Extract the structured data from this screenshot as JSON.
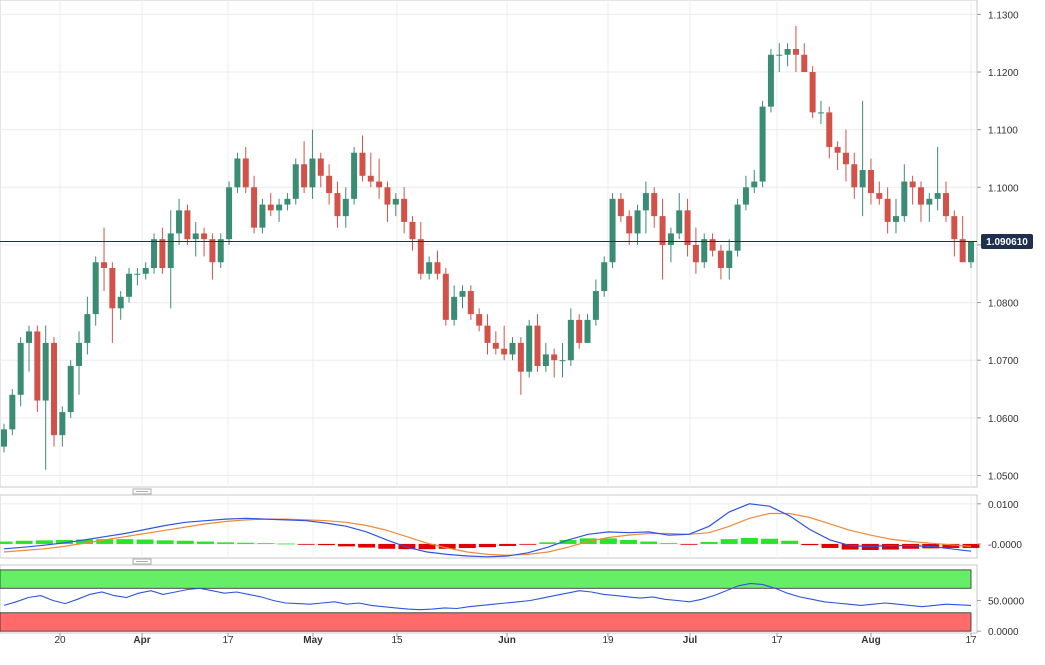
{
  "chart_data": [
    {
      "panel": "price",
      "type": "candlestick",
      "ylim": [
        1.048,
        1.1325
      ],
      "yticks": [
        "1.0500",
        "1.0600",
        "1.0700",
        "1.0800",
        "1.0900",
        "1.1000",
        "1.1100",
        "1.1200",
        "1.1300"
      ],
      "last_price_label": "1.090610",
      "last_price": 1.0906,
      "colors": {
        "up": "#3a8c74",
        "down": "#d2524a",
        "price_line": "#1e2f4f",
        "label_bg": "#1e2f4f"
      },
      "candles": [
        [
          1.055,
          1.059,
          1.054,
          1.058
        ],
        [
          1.058,
          1.065,
          1.057,
          1.064
        ],
        [
          1.064,
          1.074,
          1.062,
          1.073
        ],
        [
          1.073,
          1.076,
          1.068,
          1.075
        ],
        [
          1.075,
          1.076,
          1.061,
          1.063
        ],
        [
          1.063,
          1.076,
          1.051,
          1.073
        ],
        [
          1.073,
          1.074,
          1.055,
          1.057
        ],
        [
          1.057,
          1.062,
          1.055,
          1.061
        ],
        [
          1.061,
          1.07,
          1.06,
          1.069
        ],
        [
          1.069,
          1.075,
          1.064,
          1.073
        ],
        [
          1.073,
          1.081,
          1.071,
          1.078
        ],
        [
          1.078,
          1.088,
          1.076,
          1.087
        ],
        [
          1.087,
          1.093,
          1.082,
          1.086
        ],
        [
          1.086,
          1.087,
          1.073,
          1.079
        ],
        [
          1.079,
          1.082,
          1.077,
          1.081
        ],
        [
          1.081,
          1.086,
          1.08,
          1.085
        ],
        [
          1.085,
          1.086,
          1.083,
          1.085
        ],
        [
          1.085,
          1.087,
          1.084,
          1.086
        ],
        [
          1.086,
          1.092,
          1.085,
          1.091
        ],
        [
          1.091,
          1.093,
          1.085,
          1.086
        ],
        [
          1.086,
          1.096,
          1.079,
          1.092
        ],
        [
          1.092,
          1.098,
          1.09,
          1.096
        ],
        [
          1.096,
          1.097,
          1.09,
          1.091
        ],
        [
          1.091,
          1.094,
          1.088,
          1.092
        ],
        [
          1.092,
          1.093,
          1.088,
          1.091
        ],
        [
          1.091,
          1.092,
          1.084,
          1.087
        ],
        [
          1.087,
          1.092,
          1.086,
          1.091
        ],
        [
          1.091,
          1.101,
          1.09,
          1.1
        ],
        [
          1.1,
          1.106,
          1.099,
          1.105
        ],
        [
          1.105,
          1.107,
          1.099,
          1.1
        ],
        [
          1.1,
          1.102,
          1.092,
          1.093
        ],
        [
          1.093,
          1.098,
          1.092,
          1.097
        ],
        [
          1.097,
          1.099,
          1.095,
          1.096
        ],
        [
          1.096,
          1.098,
          1.094,
          1.097
        ],
        [
          1.097,
          1.099,
          1.096,
          1.098
        ],
        [
          1.098,
          1.105,
          1.097,
          1.104
        ],
        [
          1.104,
          1.108,
          1.099,
          1.1
        ],
        [
          1.1,
          1.11,
          1.098,
          1.105
        ],
        [
          1.105,
          1.106,
          1.1,
          1.102
        ],
        [
          1.102,
          1.104,
          1.097,
          1.099
        ],
        [
          1.099,
          1.101,
          1.093,
          1.095
        ],
        [
          1.095,
          1.1,
          1.093,
          1.098
        ],
        [
          1.098,
          1.107,
          1.097,
          1.106
        ],
        [
          1.106,
          1.109,
          1.101,
          1.102
        ],
        [
          1.102,
          1.106,
          1.1,
          1.101
        ],
        [
          1.101,
          1.105,
          1.098,
          1.1
        ],
        [
          1.1,
          1.101,
          1.094,
          1.097
        ],
        [
          1.097,
          1.099,
          1.095,
          1.098
        ],
        [
          1.098,
          1.1,
          1.092,
          1.094
        ],
        [
          1.094,
          1.095,
          1.089,
          1.091
        ],
        [
          1.091,
          1.094,
          1.084,
          1.085
        ],
        [
          1.085,
          1.088,
          1.084,
          1.087
        ],
        [
          1.087,
          1.089,
          1.084,
          1.085
        ],
        [
          1.085,
          1.086,
          1.076,
          1.077
        ],
        [
          1.077,
          1.083,
          1.076,
          1.081
        ],
        [
          1.081,
          1.083,
          1.079,
          1.082
        ],
        [
          1.082,
          1.083,
          1.077,
          1.078
        ],
        [
          1.078,
          1.079,
          1.075,
          1.076
        ],
        [
          1.076,
          1.078,
          1.071,
          1.073
        ],
        [
          1.073,
          1.075,
          1.071,
          1.072
        ],
        [
          1.072,
          1.076,
          1.07,
          1.071
        ],
        [
          1.071,
          1.074,
          1.07,
          1.073
        ],
        [
          1.073,
          1.074,
          1.064,
          1.068
        ],
        [
          1.068,
          1.077,
          1.067,
          1.076
        ],
        [
          1.076,
          1.078,
          1.068,
          1.069
        ],
        [
          1.069,
          1.073,
          1.068,
          1.071
        ],
        [
          1.071,
          1.072,
          1.067,
          1.07
        ],
        [
          1.07,
          1.073,
          1.067,
          1.07
        ],
        [
          1.07,
          1.079,
          1.069,
          1.077
        ],
        [
          1.077,
          1.078,
          1.072,
          1.073
        ],
        [
          1.073,
          1.078,
          1.073,
          1.077
        ],
        [
          1.077,
          1.084,
          1.076,
          1.082
        ],
        [
          1.082,
          1.088,
          1.081,
          1.087
        ],
        [
          1.087,
          1.099,
          1.086,
          1.098
        ],
        [
          1.098,
          1.099,
          1.094,
          1.095
        ],
        [
          1.095,
          1.096,
          1.09,
          1.092
        ],
        [
          1.092,
          1.097,
          1.09,
          1.096
        ],
        [
          1.096,
          1.101,
          1.092,
          1.099
        ],
        [
          1.099,
          1.1,
          1.093,
          1.095
        ],
        [
          1.095,
          1.098,
          1.084,
          1.09
        ],
        [
          1.09,
          1.093,
          1.087,
          1.092
        ],
        [
          1.092,
          1.099,
          1.091,
          1.096
        ],
        [
          1.096,
          1.098,
          1.088,
          1.09
        ],
        [
          1.09,
          1.093,
          1.085,
          1.087
        ],
        [
          1.087,
          1.092,
          1.086,
          1.091
        ],
        [
          1.091,
          1.092,
          1.088,
          1.089
        ],
        [
          1.089,
          1.09,
          1.084,
          1.086
        ],
        [
          1.086,
          1.091,
          1.084,
          1.089
        ],
        [
          1.089,
          1.098,
          1.088,
          1.097
        ],
        [
          1.097,
          1.102,
          1.096,
          1.1
        ],
        [
          1.1,
          1.103,
          1.099,
          1.101
        ],
        [
          1.101,
          1.115,
          1.1,
          1.114
        ],
        [
          1.114,
          1.124,
          1.113,
          1.123
        ],
        [
          1.123,
          1.125,
          1.12,
          1.123
        ],
        [
          1.123,
          1.125,
          1.121,
          1.124
        ],
        [
          1.124,
          1.128,
          1.12,
          1.123
        ],
        [
          1.123,
          1.125,
          1.12,
          1.12
        ],
        [
          1.12,
          1.121,
          1.112,
          1.113
        ],
        [
          1.113,
          1.115,
          1.111,
          1.113
        ],
        [
          1.113,
          1.114,
          1.105,
          1.107
        ],
        [
          1.107,
          1.108,
          1.103,
          1.106
        ],
        [
          1.106,
          1.11,
          1.101,
          1.104
        ],
        [
          1.104,
          1.106,
          1.098,
          1.1
        ],
        [
          1.1,
          1.115,
          1.095,
          1.103
        ],
        [
          1.103,
          1.105,
          1.097,
          1.099
        ],
        [
          1.099,
          1.101,
          1.097,
          1.098
        ],
        [
          1.098,
          1.1,
          1.092,
          1.094
        ],
        [
          1.094,
          1.098,
          1.092,
          1.095
        ],
        [
          1.095,
          1.104,
          1.094,
          1.101
        ],
        [
          1.101,
          1.102,
          1.097,
          1.1
        ],
        [
          1.1,
          1.101,
          1.094,
          1.097
        ],
        [
          1.097,
          1.099,
          1.094,
          1.098
        ],
        [
          1.098,
          1.107,
          1.096,
          1.099
        ],
        [
          1.099,
          1.101,
          1.094,
          1.095
        ],
        [
          1.095,
          1.096,
          1.088,
          1.091
        ],
        [
          1.091,
          1.095,
          1.087,
          1.087
        ],
        [
          1.087,
          1.09,
          1.086,
          1.0906
        ]
      ]
    },
    {
      "panel": "macd",
      "type": "macd",
      "ylim": [
        -0.0035,
        0.0122
      ],
      "yticks": [
        "0.0100",
        "-0.0000"
      ],
      "colors": {
        "macd": "#2f55e0",
        "signal": "#ef8a3a",
        "hist_up": "#27e627",
        "hist_down": "#e00000"
      },
      "macd": [
        -0.0012,
        -0.0008,
        -0.0003,
        0.0003,
        0.001,
        0.0018,
        0.0026,
        0.0036,
        0.0046,
        0.0054,
        0.0058,
        0.0062,
        0.0064,
        0.0062,
        0.006,
        0.0058,
        0.0052,
        0.0044,
        0.003,
        0.001,
        -0.0008,
        -0.002,
        -0.0026,
        -0.003,
        -0.0032,
        -0.003,
        -0.0022,
        -0.0008,
        0.001,
        0.0024,
        0.003,
        0.0028,
        0.003,
        0.0022,
        0.0024,
        0.0044,
        0.008,
        0.01,
        0.0094,
        0.007,
        0.0036,
        0.001,
        -0.0004,
        -0.0006,
        -0.0004,
        -0.0004,
        -0.0006,
        -0.0012,
        -0.0018
      ],
      "signal": [
        -0.002,
        -0.0016,
        -0.0012,
        -0.0006,
        0.0002,
        0.001,
        0.0018,
        0.0026,
        0.0034,
        0.0042,
        0.005,
        0.0056,
        0.006,
        0.0062,
        0.0062,
        0.006,
        0.0058,
        0.0054,
        0.0046,
        0.0034,
        0.0018,
        0.0002,
        -0.001,
        -0.002,
        -0.0026,
        -0.0028,
        -0.0026,
        -0.002,
        -0.0008,
        0.0006,
        0.0016,
        0.0022,
        0.0026,
        0.0026,
        0.0024,
        0.0028,
        0.0044,
        0.0064,
        0.0076,
        0.0076,
        0.0066,
        0.005,
        0.0034,
        0.0022,
        0.0012,
        0.0006,
        0.0002,
        -0.0002,
        -0.0006
      ],
      "hist": [
        0.0006,
        0.0008,
        0.0009,
        0.001,
        0.0011,
        0.0012,
        0.0012,
        0.0011,
        0.0009,
        0.0008,
        0.0006,
        0.0004,
        0.0003,
        0.0002,
        0.0001,
        -0.0001,
        -0.0003,
        -0.0006,
        -0.0009,
        -0.0012,
        -0.0013,
        -0.0013,
        -0.0012,
        -0.001,
        -0.0008,
        -0.0005,
        -0.0002,
        0.0004,
        0.001,
        0.0014,
        0.0014,
        0.001,
        0.0006,
        0.0002,
        -0.0001,
        0.0005,
        0.0012,
        0.0015,
        0.0013,
        0.0008,
        -0.0003,
        -0.001,
        -0.0014,
        -0.0015,
        -0.0014,
        -0.0012,
        -0.0011,
        -0.001,
        -0.001
      ]
    },
    {
      "panel": "rsi",
      "type": "line",
      "ylim": [
        -3,
        108
      ],
      "yticks": [
        "50.0000",
        "0.0000"
      ],
      "colors": {
        "line": "#2f55e0",
        "overbought": "#66ee66",
        "oversold": "#ff6b6b"
      },
      "overbought_band": [
        70,
        100
      ],
      "oversold_band": [
        0,
        30
      ],
      "values": [
        42,
        48,
        55,
        58,
        50,
        45,
        52,
        60,
        64,
        58,
        55,
        62,
        66,
        60,
        64,
        68,
        70,
        66,
        62,
        64,
        60,
        56,
        50,
        46,
        45,
        44,
        46,
        48,
        44,
        46,
        42,
        40,
        38,
        36,
        35,
        36,
        38,
        37,
        40,
        42,
        44,
        46,
        48,
        50,
        54,
        58,
        62,
        66,
        64,
        60,
        58,
        56,
        54,
        56,
        52,
        50,
        48,
        52,
        58,
        66,
        74,
        78,
        76,
        70,
        62,
        56,
        52,
        48,
        46,
        44,
        42,
        44,
        46,
        44,
        42,
        40,
        42,
        44,
        43,
        42
      ]
    }
  ],
  "x_axis": {
    "labels": [
      {
        "text": "20",
        "bold": false
      },
      {
        "text": "Apr",
        "bold": true
      },
      {
        "text": "17",
        "bold": false
      },
      {
        "text": "May",
        "bold": true
      },
      {
        "text": "15",
        "bold": false
      },
      {
        "text": "Jun",
        "bold": true
      },
      {
        "text": "19",
        "bold": false
      },
      {
        "text": "Jul",
        "bold": true
      },
      {
        "text": "17",
        "bold": false
      },
      {
        "text": "Aug",
        "bold": true
      },
      {
        "text": "17",
        "bold": false
      }
    ]
  }
}
